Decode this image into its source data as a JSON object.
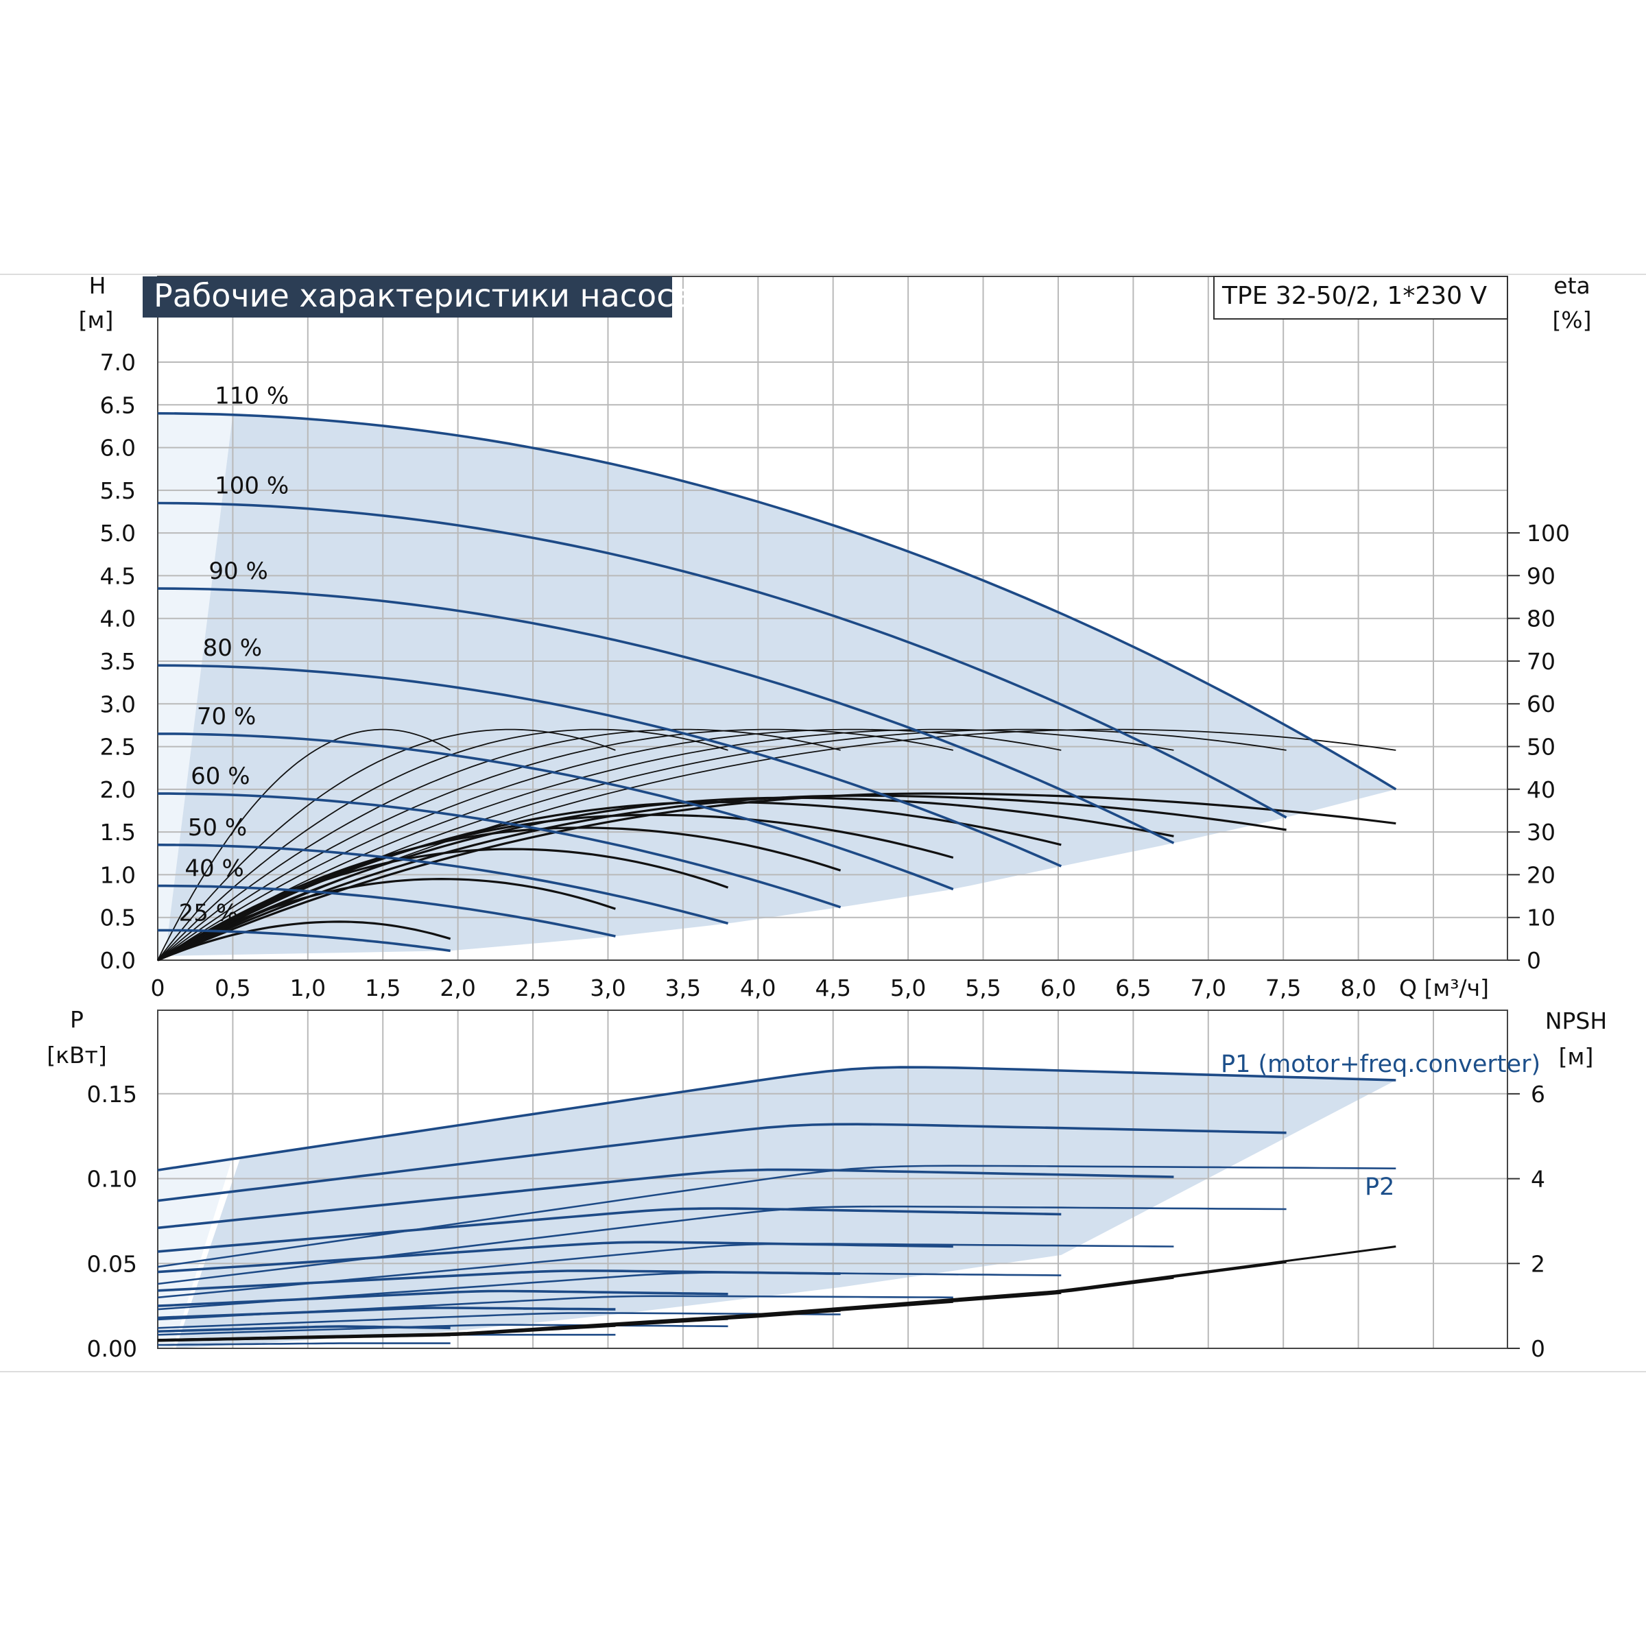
{
  "chart_data": [
    {
      "type": "line",
      "title": "Рабочие характеристики насоса",
      "model": "TPE 32-50/2, 1*230 V",
      "ylabel": "H",
      "yunit": "[м]",
      "y2label": "eta",
      "y2unit": "[%]",
      "xlabel": "Q [м³/ч]",
      "xlim": [
        0,
        8.5
      ],
      "ylim": [
        0,
        7.0
      ],
      "y2lim": [
        0,
        100
      ],
      "grid": true,
      "x_ticks": [
        "0",
        "0,5",
        "1,0",
        "1,5",
        "2,0",
        "2,5",
        "3,0",
        "3,5",
        "4,0",
        "4,5",
        "5,0",
        "5,5",
        "6,0",
        "6,5",
        "7,0",
        "7,5",
        "8,0"
      ],
      "y_ticks": [
        "0.0",
        "0.5",
        "1.0",
        "1.5",
        "2.0",
        "2.5",
        "3.0",
        "3.5",
        "4.0",
        "4.5",
        "5.0",
        "5.5",
        "6.0",
        "6.5",
        "7.0"
      ],
      "y2_ticks": [
        "0",
        "10",
        "20",
        "30",
        "40",
        "50",
        "60",
        "70",
        "80",
        "90",
        "100"
      ],
      "head_curves": [
        {
          "name": "110 %",
          "h0": 6.4,
          "qmax": 8.25,
          "hend": 2.0
        },
        {
          "name": "100 %",
          "h0": 5.35,
          "qmax": 7.52,
          "hend": 1.67
        },
        {
          "name": "90 %",
          "h0": 4.35,
          "qmax": 6.77,
          "hend": 1.37
        },
        {
          "name": "80 %",
          "h0": 3.45,
          "qmax": 6.02,
          "hend": 1.1
        },
        {
          "name": "70 %",
          "h0": 2.65,
          "qmax": 5.3,
          "hend": 0.83
        },
        {
          "name": "60 %",
          "h0": 1.95,
          "qmax": 4.55,
          "hend": 0.62
        },
        {
          "name": "50 %",
          "h0": 1.35,
          "qmax": 3.8,
          "hend": 0.43
        },
        {
          "name": "40 %",
          "h0": 0.87,
          "qmax": 3.05,
          "hend": 0.28
        },
        {
          "name": "25 %",
          "h0": 0.35,
          "qmax": 1.95,
          "hend": 0.11
        }
      ],
      "eta_curves": {
        "pump_eta_max": 54,
        "pump_eta_qmax": [
          1.95,
          3.05,
          3.8,
          4.55,
          5.3,
          6.02,
          6.77,
          7.52,
          8.25
        ],
        "total_eta_max": [
          9,
          19,
          26,
          31,
          34,
          37,
          38,
          38.5,
          39
        ],
        "total_eta_end": [
          5,
          12,
          17,
          21,
          24,
          27,
          29,
          30.5,
          32
        ]
      }
    },
    {
      "type": "line",
      "ylabel": "P",
      "yunit": "[кВт]",
      "y2label": "NPSH",
      "y2unit": "[м]",
      "xlim": [
        0,
        8.5
      ],
      "ylim": [
        0,
        0.2
      ],
      "y2lim": [
        0,
        7
      ],
      "grid": true,
      "y_ticks": [
        "0.00",
        "0.05",
        "0.10",
        "0.15"
      ],
      "y2_ticks": [
        "0",
        "2",
        "4",
        "6"
      ],
      "series_labels": {
        "p1": "P1 (motor+freq.converter)",
        "p2": "P2"
      },
      "p1_curves": [
        {
          "q": [
            0,
            4.7,
            8.25
          ],
          "p": [
            0.105,
            0.167,
            0.158
          ]
        },
        {
          "q": [
            0,
            4.3,
            7.52
          ],
          "p": [
            0.087,
            0.133,
            0.127
          ]
        },
        {
          "q": [
            0,
            3.9,
            6.77
          ],
          "p": [
            0.071,
            0.106,
            0.101
          ]
        },
        {
          "q": [
            0,
            3.5,
            6.02
          ],
          "p": [
            0.057,
            0.083,
            0.079
          ]
        },
        {
          "q": [
            0,
            3.1,
            5.3
          ],
          "p": [
            0.045,
            0.063,
            0.06
          ]
        },
        {
          "q": [
            0,
            2.7,
            4.55
          ],
          "p": [
            0.034,
            0.046,
            0.044
          ]
        },
        {
          "q": [
            0,
            2.2,
            3.8
          ],
          "p": [
            0.025,
            0.034,
            0.032
          ]
        },
        {
          "q": [
            0,
            1.8,
            3.05
          ],
          "p": [
            0.018,
            0.024,
            0.023
          ]
        },
        {
          "q": [
            0,
            1.2,
            1.95
          ],
          "p": [
            0.01,
            0.013,
            0.012
          ]
        }
      ],
      "p2_curves": [
        {
          "q": [
            0,
            4.7,
            8.25
          ],
          "p": [
            0.048,
            0.108,
            0.106
          ]
        },
        {
          "q": [
            0,
            4.3,
            7.52
          ],
          "p": [
            0.038,
            0.084,
            0.082
          ]
        },
        {
          "q": [
            0,
            3.9,
            6.77
          ],
          "p": [
            0.03,
            0.062,
            0.06
          ]
        },
        {
          "q": [
            0,
            3.5,
            6.02
          ],
          "p": [
            0.023,
            0.045,
            0.043
          ]
        },
        {
          "q": [
            0,
            3.1,
            5.3
          ],
          "p": [
            0.017,
            0.031,
            0.03
          ]
        },
        {
          "q": [
            0,
            2.7,
            4.55
          ],
          "p": [
            0.012,
            0.021,
            0.02
          ]
        },
        {
          "q": [
            0,
            2.2,
            3.8
          ],
          "p": [
            0.008,
            0.014,
            0.013
          ]
        },
        {
          "q": [
            0,
            1.8,
            3.05
          ],
          "p": [
            0.005,
            0.008,
            0.008
          ]
        },
        {
          "q": [
            0,
            1.2,
            1.95
          ],
          "p": [
            0.002,
            0.003,
            0.003
          ]
        }
      ],
      "npsh": {
        "q": [
          0,
          2.0,
          4.0,
          6.0,
          8.25
        ],
        "h": [
          0.2,
          0.35,
          0.8,
          1.35,
          2.4
        ]
      }
    }
  ],
  "colors": {
    "curve_blue": "#1d4a86",
    "fill_blue": "#d3e0ee",
    "fill_light": "#eef4fa",
    "grid": "#b9b9b9",
    "title_bg": "#2c3e55",
    "black": "#111111"
  }
}
